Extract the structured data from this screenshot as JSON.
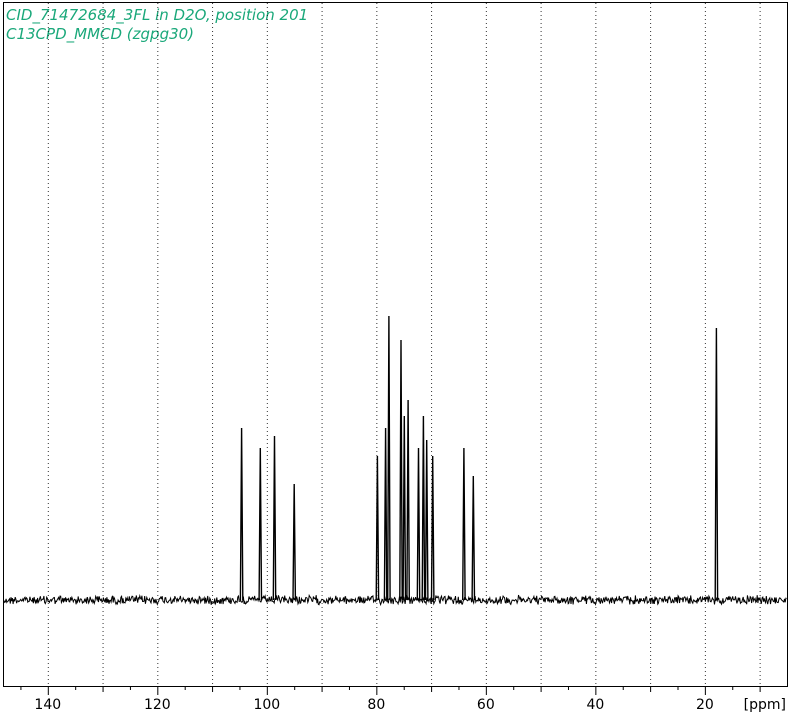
{
  "chart_data": {
    "type": "line",
    "title": "CID_71472684_3FL in D2O, position 201",
    "subtitle": "C13CPD_MMCD (zgpg30)",
    "xlabel": "[ppm]",
    "xlim": [
      148,
      5
    ],
    "x_reversed": true,
    "x_ticks": [
      140,
      120,
      100,
      80,
      60,
      40,
      20
    ],
    "grid": {
      "vertical_dotted": true,
      "horizontal": false
    },
    "baseline": 0,
    "ylim": [
      -0.05,
      1.05
    ],
    "series": [
      {
        "peaks": [
          {
            "x": 104.6,
            "y": 0.43
          },
          {
            "x": 101.2,
            "y": 0.38
          },
          {
            "x": 98.6,
            "y": 0.41
          },
          {
            "x": 95.0,
            "y": 0.29
          },
          {
            "x": 79.8,
            "y": 0.36
          },
          {
            "x": 78.3,
            "y": 0.43
          },
          {
            "x": 77.7,
            "y": 0.71
          },
          {
            "x": 75.5,
            "y": 0.65
          },
          {
            "x": 74.9,
            "y": 0.46
          },
          {
            "x": 74.2,
            "y": 0.5
          },
          {
            "x": 72.3,
            "y": 0.38
          },
          {
            "x": 71.4,
            "y": 0.46
          },
          {
            "x": 70.8,
            "y": 0.4
          },
          {
            "x": 69.7,
            "y": 0.36
          },
          {
            "x": 64.0,
            "y": 0.38
          },
          {
            "x": 62.3,
            "y": 0.31
          },
          {
            "x": 17.9,
            "y": 0.68
          }
        ]
      }
    ]
  },
  "colors": {
    "title": "#1aa87a",
    "trace": "#000000",
    "grid": "#000000"
  }
}
